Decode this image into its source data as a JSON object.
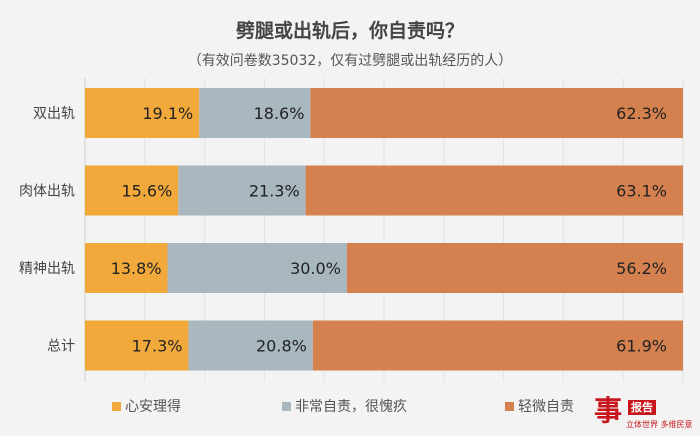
{
  "chart_data": {
    "type": "bar",
    "orientation": "horizontal",
    "stacked": true,
    "title": "劈腿或出轨后，你自责吗？",
    "subtitle": "（有效问卷数35032，仅有过劈腿或出轨经历的人）",
    "categories": [
      "双出轨",
      "肉体出轨",
      "精神出轨",
      "总计"
    ],
    "series": [
      {
        "name": "心安理得",
        "color": "#f2a93b",
        "values": [
          19.1,
          15.6,
          13.8,
          17.3
        ]
      },
      {
        "name": "非常自责，很愧疚",
        "color": "#a9b7bf",
        "values": [
          18.6,
          21.3,
          30.0,
          20.8
        ]
      },
      {
        "name": "轻微自责",
        "color": "#d5804f",
        "values": [
          62.3,
          63.1,
          56.2,
          61.9
        ]
      }
    ],
    "xlim": [
      0,
      100
    ],
    "legend_position": "bottom",
    "value_suffix": "%"
  },
  "logo": {
    "badge": "报告",
    "tagline": "立体世界 多维民意"
  }
}
